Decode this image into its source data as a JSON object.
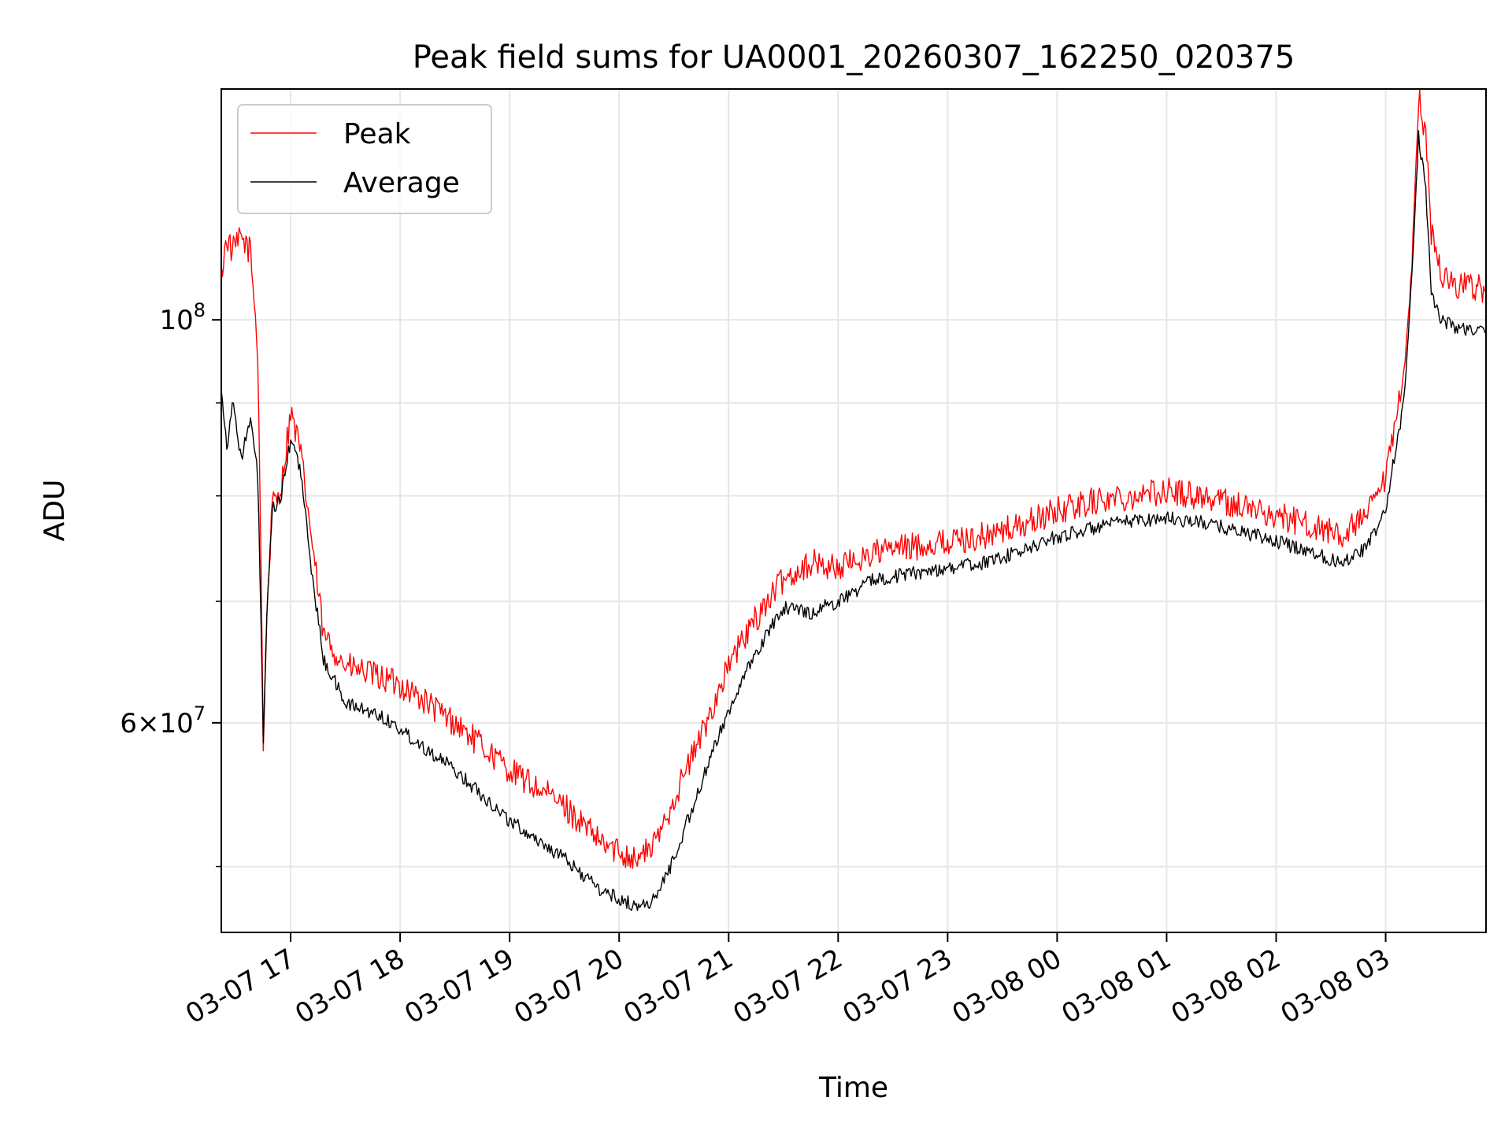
{
  "chart_data": {
    "type": "line",
    "title": "Peak field sums for UA0001_20260307_162250_020375",
    "xlabel": "Time",
    "ylabel": "ADU",
    "yscale": "log",
    "ylim": [
      46000000,
      134000000
    ],
    "xlim": [
      "03-07 16:22",
      "03-08 03:55"
    ],
    "grid": true,
    "legend_position": "upper left",
    "x_ticks": [
      "03-07 17",
      "03-07 18",
      "03-07 19",
      "03-07 20",
      "03-07 21",
      "03-07 22",
      "03-07 23",
      "03-08 00",
      "03-08 01",
      "03-08 02",
      "03-08 03"
    ],
    "y_ticks_major": [
      {
        "value": 100000000,
        "label": "10^8"
      },
      {
        "value": 60000000,
        "label": "6×10^7"
      }
    ],
    "y_ticks_minor": [
      50000000,
      70000000,
      80000000,
      90000000
    ],
    "series": [
      {
        "name": "Peak",
        "color": "#ff0000",
        "points": [
          [
            "03-07 16:22",
            106000000
          ],
          [
            "03-07 16:25",
            111000000
          ],
          [
            "03-07 16:28",
            109000000
          ],
          [
            "03-07 16:33",
            111000000
          ],
          [
            "03-07 16:38",
            109000000
          ],
          [
            "03-07 16:42",
            96000000
          ],
          [
            "03-07 16:45",
            58000000
          ],
          [
            "03-07 16:47",
            69000000
          ],
          [
            "03-07 16:50",
            79000000
          ],
          [
            "03-07 16:55",
            81000000
          ],
          [
            "03-07 17:00",
            89000000
          ],
          [
            "03-07 17:05",
            85000000
          ],
          [
            "03-07 17:12",
            75000000
          ],
          [
            "03-07 17:18",
            67000000
          ],
          [
            "03-07 17:30",
            64500000
          ],
          [
            "03-07 17:50",
            63500000
          ],
          [
            "03-07 18:00",
            63000000
          ],
          [
            "03-07 18:30",
            60000000
          ],
          [
            "03-07 19:00",
            56500000
          ],
          [
            "03-07 19:30",
            54000000
          ],
          [
            "03-07 19:50",
            51500000
          ],
          [
            "03-07 20:10",
            50500000
          ],
          [
            "03-07 20:20",
            51500000
          ],
          [
            "03-07 20:30",
            54500000
          ],
          [
            "03-07 20:45",
            59000000
          ],
          [
            "03-07 21:00",
            64500000
          ],
          [
            "03-07 21:15",
            68500000
          ],
          [
            "03-07 21:30",
            72000000
          ],
          [
            "03-07 21:45",
            73500000
          ],
          [
            "03-07 22:00",
            73000000
          ],
          [
            "03-07 22:20",
            74500000
          ],
          [
            "03-07 22:40",
            75000000
          ],
          [
            "03-07 23:00",
            75500000
          ],
          [
            "03-07 23:20",
            76000000
          ],
          [
            "03-07 23:40",
            77000000
          ],
          [
            "03-08 00:00",
            78500000
          ],
          [
            "03-08 00:20",
            79500000
          ],
          [
            "03-08 00:40",
            80000000
          ],
          [
            "03-08 01:00",
            80500000
          ],
          [
            "03-08 01:20",
            80000000
          ],
          [
            "03-08 01:40",
            79000000
          ],
          [
            "03-08 02:00",
            78000000
          ],
          [
            "03-08 02:20",
            77000000
          ],
          [
            "03-08 02:35",
            76000000
          ],
          [
            "03-08 02:50",
            78000000
          ],
          [
            "03-08 03:00",
            81500000
          ],
          [
            "03-08 03:10",
            93000000
          ],
          [
            "03-08 03:15",
            110000000
          ],
          [
            "03-08 03:18",
            133000000
          ],
          [
            "03-08 03:22",
            126000000
          ],
          [
            "03-08 03:25",
            112000000
          ],
          [
            "03-08 03:30",
            106000000
          ],
          [
            "03-08 03:40",
            104500000
          ],
          [
            "03-08 03:55",
            104000000
          ]
        ]
      },
      {
        "name": "Average",
        "color": "#000000",
        "points": [
          [
            "03-07 16:22",
            92000000
          ],
          [
            "03-07 16:25",
            85000000
          ],
          [
            "03-07 16:28",
            90000000
          ],
          [
            "03-07 16:33",
            84000000
          ],
          [
            "03-07 16:38",
            88000000
          ],
          [
            "03-07 16:42",
            82000000
          ],
          [
            "03-07 16:45",
            58500000
          ],
          [
            "03-07 16:47",
            68500000
          ],
          [
            "03-07 16:50",
            78500000
          ],
          [
            "03-07 16:55",
            80000000
          ],
          [
            "03-07 17:00",
            86000000
          ],
          [
            "03-07 17:05",
            83000000
          ],
          [
            "03-07 17:12",
            72000000
          ],
          [
            "03-07 17:18",
            65000000
          ],
          [
            "03-07 17:30",
            61500000
          ],
          [
            "03-07 17:50",
            60500000
          ],
          [
            "03-07 18:00",
            59500000
          ],
          [
            "03-07 18:30",
            56500000
          ],
          [
            "03-07 19:00",
            53000000
          ],
          [
            "03-07 19:30",
            50500000
          ],
          [
            "03-07 19:50",
            48500000
          ],
          [
            "03-07 20:10",
            47500000
          ],
          [
            "03-07 20:20",
            48000000
          ],
          [
            "03-07 20:30",
            50500000
          ],
          [
            "03-07 20:45",
            55500000
          ],
          [
            "03-07 21:00",
            61000000
          ],
          [
            "03-07 21:15",
            65500000
          ],
          [
            "03-07 21:30",
            69500000
          ],
          [
            "03-07 21:45",
            69000000
          ],
          [
            "03-07 22:00",
            70000000
          ],
          [
            "03-07 22:20",
            72000000
          ],
          [
            "03-07 22:40",
            72500000
          ],
          [
            "03-07 23:00",
            73000000
          ],
          [
            "03-07 23:20",
            73500000
          ],
          [
            "03-07 23:40",
            74500000
          ],
          [
            "03-08 00:00",
            76000000
          ],
          [
            "03-08 00:20",
            76800000
          ],
          [
            "03-08 00:40",
            77500000
          ],
          [
            "03-08 01:00",
            77800000
          ],
          [
            "03-08 01:20",
            77300000
          ],
          [
            "03-08 01:40",
            76500000
          ],
          [
            "03-08 02:00",
            75500000
          ],
          [
            "03-08 02:20",
            74500000
          ],
          [
            "03-08 02:35",
            73500000
          ],
          [
            "03-08 02:50",
            75000000
          ],
          [
            "03-08 03:00",
            78500000
          ],
          [
            "03-08 03:10",
            90000000
          ],
          [
            "03-08 03:15",
            108000000
          ],
          [
            "03-08 03:18",
            126000000
          ],
          [
            "03-08 03:22",
            118000000
          ],
          [
            "03-08 03:25",
            104000000
          ],
          [
            "03-08 03:30",
            100000000
          ],
          [
            "03-08 03:40",
            99000000
          ],
          [
            "03-08 03:55",
            98500000
          ]
        ]
      }
    ]
  }
}
